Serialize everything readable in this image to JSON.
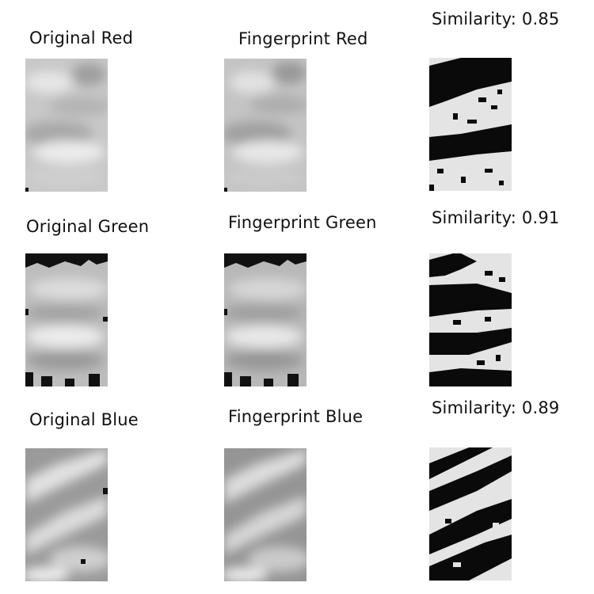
{
  "panels": [
    {
      "channel": "red",
      "original_label": "Original Red",
      "fingerprint_label": "Fingerprint Red",
      "similarity_label": "Similarity: 0.85",
      "similarity": 0.85
    },
    {
      "channel": "green",
      "original_label": "Original Green",
      "fingerprint_label": "Fingerprint Green",
      "similarity_label": "Similarity: 0.91",
      "similarity": 0.91
    },
    {
      "channel": "blue",
      "original_label": "Original Blue",
      "fingerprint_label": "Fingerprint Blue",
      "similarity_label": "Similarity: 0.89",
      "similarity": 0.89
    }
  ]
}
